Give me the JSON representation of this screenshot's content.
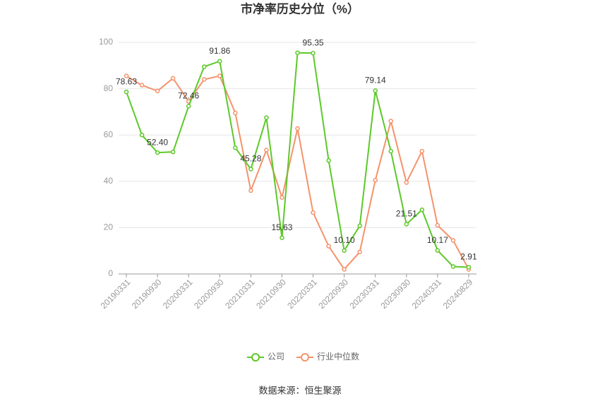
{
  "chart_data": {
    "type": "line",
    "title": "市净率历史分位（%）",
    "categories": [
      "20190331",
      null,
      "20190930",
      null,
      "20200331",
      null,
      "20200930",
      null,
      "20210331",
      null,
      "20210930",
      null,
      "20220331",
      null,
      "20220930",
      null,
      "20230331",
      null,
      "20230930",
      null,
      "20240331",
      null,
      "20240829"
    ],
    "series": [
      {
        "name": "公司",
        "color": "#5cc928",
        "values": [
          78.63,
          60,
          52.4,
          52.7,
          72.46,
          89.5,
          91.86,
          54.5,
          45.28,
          67.5,
          15.63,
          95.5,
          95.35,
          49,
          10.1,
          20.8,
          79.14,
          53,
          21.51,
          27.7,
          10.17,
          3.2,
          2.91
        ],
        "value_labels": [
          "78.63",
          null,
          "52.40",
          null,
          "72.46",
          null,
          "91.86",
          null,
          "45.28",
          null,
          "15.63",
          null,
          "95.35",
          null,
          "10.10",
          null,
          "79.14",
          null,
          "21.51",
          null,
          "10.17",
          null,
          "2.91"
        ]
      },
      {
        "name": "行业中位数",
        "color": "#f5926b",
        "values": [
          85.5,
          81.5,
          79,
          84.5,
          74.5,
          84,
          85.5,
          69.5,
          36,
          53.5,
          33,
          62.8,
          26.5,
          12,
          2,
          9.5,
          40.5,
          66,
          39.5,
          53,
          21,
          14.5,
          2
        ]
      }
    ],
    "ylim": [
      0,
      100
    ],
    "yticks": [
      0,
      20,
      40,
      60,
      80,
      100
    ],
    "grid": true,
    "legend": "bottom",
    "source": "数据来源：恒生聚源"
  }
}
